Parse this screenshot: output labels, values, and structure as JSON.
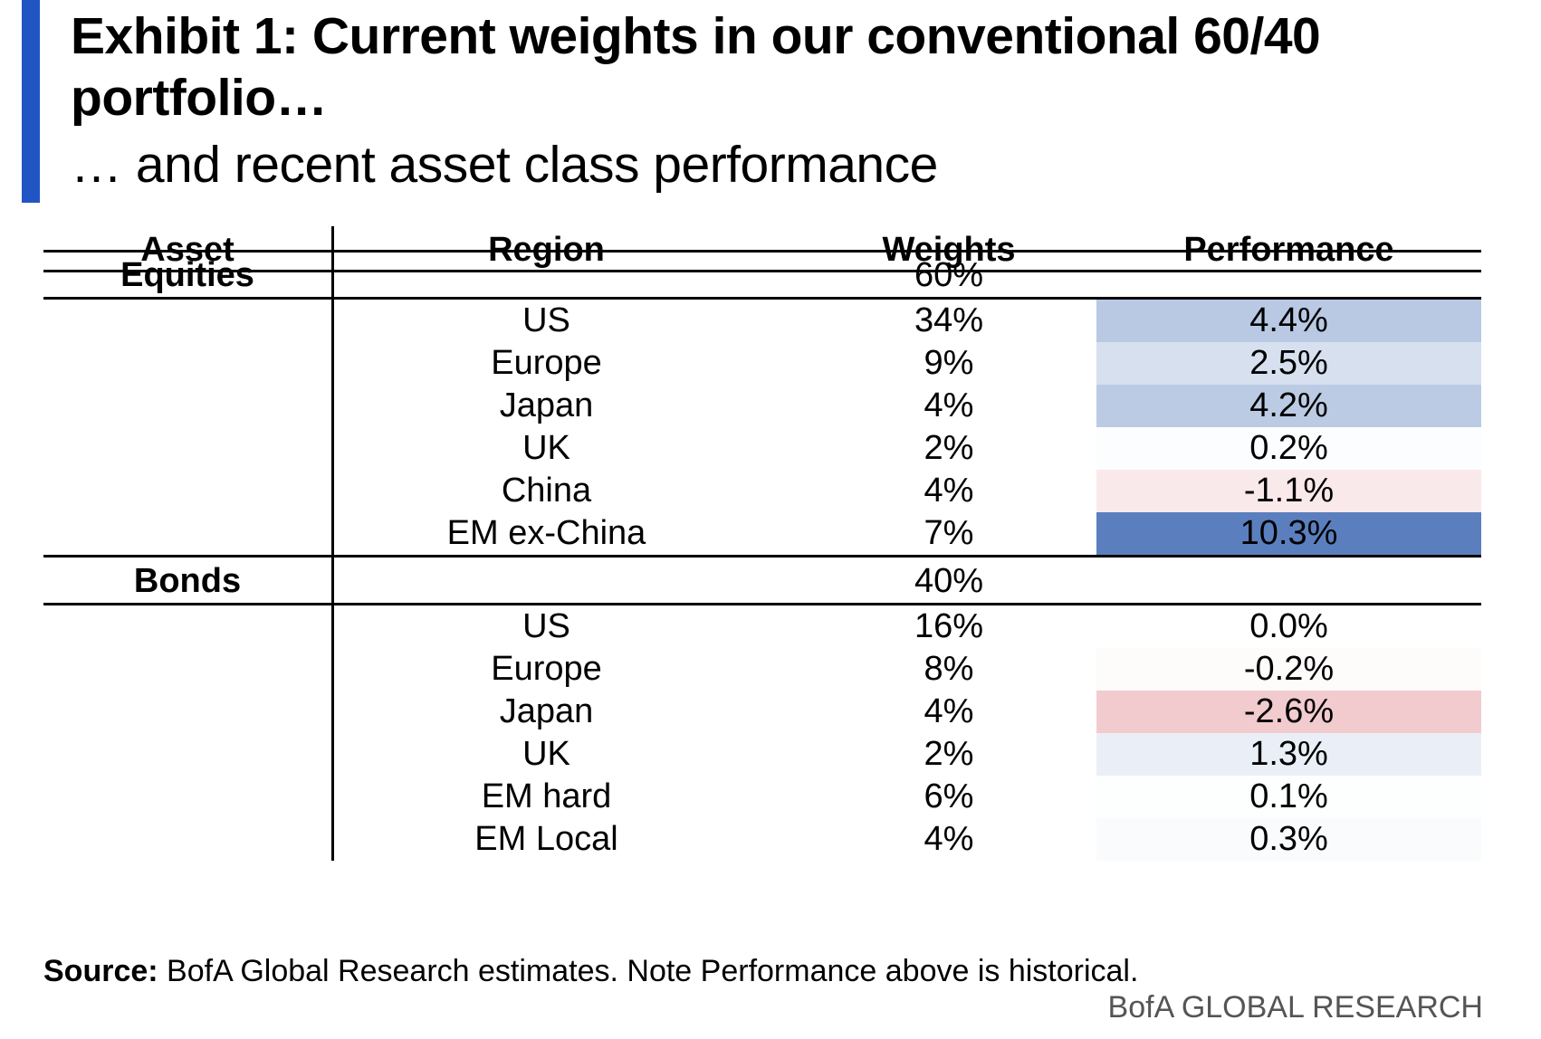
{
  "header": {
    "title": "Exhibit 1: Current weights in our conventional 60/40 portfolio…",
    "subtitle": "… and recent asset class performance",
    "accent_color": "#2255c4"
  },
  "table": {
    "columns": [
      "Asset",
      "Region",
      "Weights",
      "Performance"
    ]
  },
  "chart_data": {
    "type": "table",
    "title": "Exhibit 1: Current weights in our conventional 60/40 portfolio…",
    "subtitle": "… and recent asset class performance",
    "columns": [
      "Asset",
      "Region",
      "Weights",
      "Performance"
    ],
    "groups": [
      {
        "asset": "Equities",
        "weight": "60%",
        "rows": [
          {
            "region": "US",
            "weight": "34%",
            "performance": "4.4%",
            "value": 4.4
          },
          {
            "region": "Europe",
            "weight": "9%",
            "performance": "2.5%",
            "value": 2.5
          },
          {
            "region": "Japan",
            "weight": "4%",
            "performance": "4.2%",
            "value": 4.2
          },
          {
            "region": "UK",
            "weight": "2%",
            "performance": "0.2%",
            "value": 0.2
          },
          {
            "region": "China",
            "weight": "4%",
            "performance": "-1.1%",
            "value": -1.1
          },
          {
            "region": "EM ex-China",
            "weight": "7%",
            "performance": "10.3%",
            "value": 10.3
          }
        ]
      },
      {
        "asset": "Bonds",
        "weight": "40%",
        "rows": [
          {
            "region": "US",
            "weight": "16%",
            "performance": "0.0%",
            "value": 0.0
          },
          {
            "region": "Europe",
            "weight": "8%",
            "performance": "-0.2%",
            "value": -0.2
          },
          {
            "region": "Japan",
            "weight": "4%",
            "performance": "-2.6%",
            "value": -2.6
          },
          {
            "region": "UK",
            "weight": "2%",
            "performance": "1.3%",
            "value": 1.3
          },
          {
            "region": "EM hard",
            "weight": "6%",
            "performance": "0.1%",
            "value": 0.1
          },
          {
            "region": "EM Local",
            "weight": "4%",
            "performance": "0.3%",
            "value": 0.3
          }
        ]
      }
    ],
    "heat_colors": {
      "positive": "#5b7fbe",
      "negative": "#e8a0a8",
      "neutral": "#ffffff"
    }
  },
  "footer": {
    "source_label": "Source:",
    "source_text": " BofA Global Research estimates. Note Performance above is historical.",
    "brand": "BofA GLOBAL RESEARCH"
  }
}
